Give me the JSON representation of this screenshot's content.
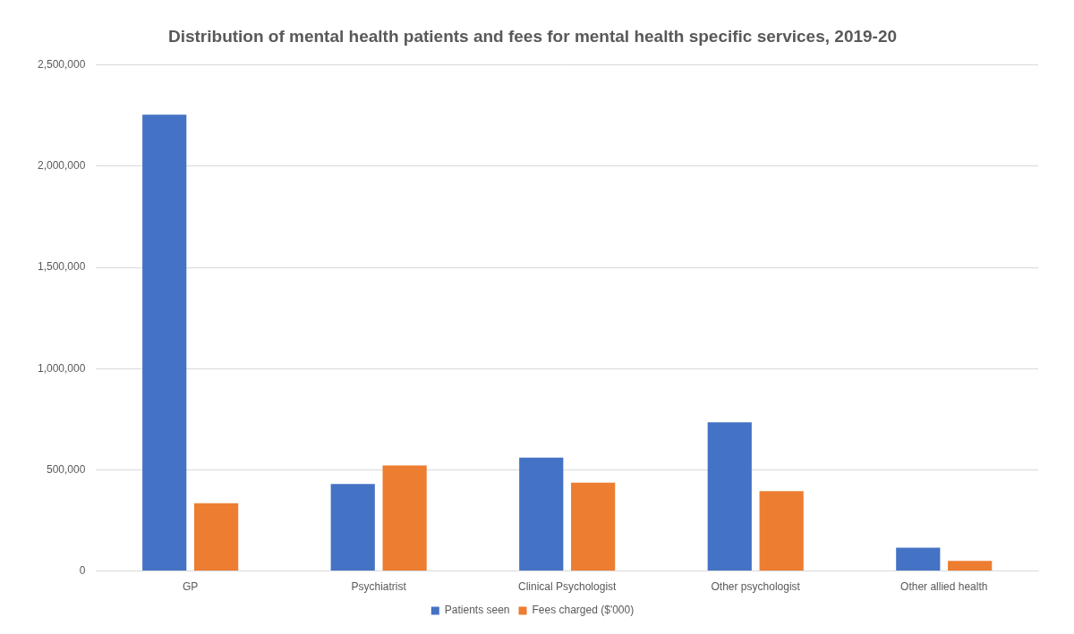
{
  "chart_data": {
    "type": "bar",
    "title": "Distribution of mental health patients and fees for mental health specific services, 2019-20",
    "categories": [
      "GP",
      "Psychiatrist",
      "Clinical Psychologist",
      "Other psychologist",
      "Other allied health"
    ],
    "series": [
      {
        "name": "Patients seen",
        "color": "#4472c4",
        "values": [
          2255000,
          430000,
          560000,
          735000,
          115000
        ]
      },
      {
        "name": "Fees charged ($'000)",
        "color": "#ed7d31",
        "values": [
          335000,
          522000,
          437000,
          395000,
          50000
        ]
      }
    ],
    "ylim": [
      0,
      2500000
    ],
    "yticks": [
      0,
      {
        "value": 500000,
        "label": "500,000"
      },
      {
        "value": 1000000,
        "label": "1,000,000"
      },
      {
        "value": 1500000,
        "label": "1,500,000"
      },
      {
        "value": 2000000,
        "label": "2,000,000"
      },
      {
        "value": 2500000,
        "label": "2,500,000"
      }
    ],
    "grid": true,
    "legend": "bottom"
  }
}
